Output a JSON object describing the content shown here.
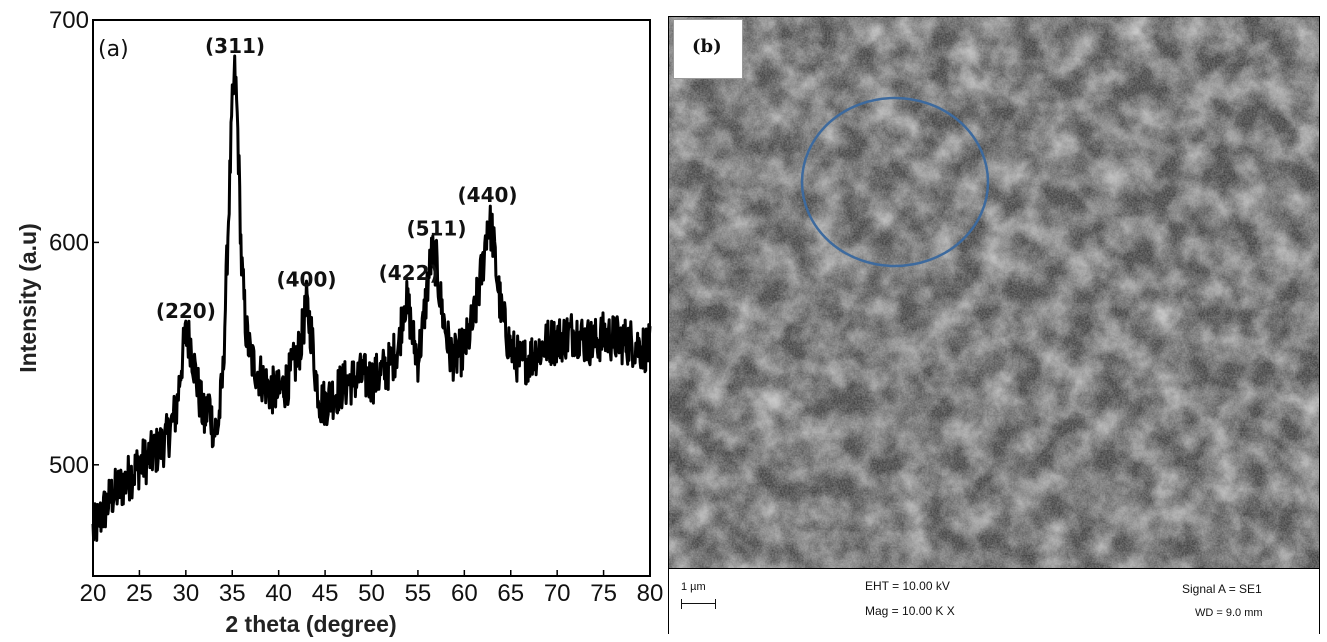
{
  "chart_data": {
    "type": "line",
    "panel_label": "(a)",
    "xlabel": "2 theta (degree)",
    "ylabel": "Intensity (a.u)",
    "xlim": [
      20,
      80
    ],
    "ylim": [
      450,
      700
    ],
    "x_ticks": [
      20,
      25,
      30,
      35,
      40,
      45,
      50,
      55,
      60,
      65,
      70,
      75,
      80
    ],
    "y_ticks": [
      500,
      600,
      700
    ],
    "grid": false,
    "legend": "none",
    "line_color": "#000000",
    "series": [
      {
        "x": [
          20,
          21,
          22,
          23,
          24,
          25,
          26,
          27,
          28,
          29,
          29.5,
          30,
          30.5,
          31,
          31.5,
          32,
          32.5,
          33,
          33.5,
          34,
          34.5,
          35,
          35.3,
          35.6,
          36,
          36.5,
          37,
          38,
          39,
          40,
          41,
          42,
          42.5,
          43,
          43.5,
          44,
          44.5,
          45,
          46,
          47,
          48,
          49,
          50,
          51,
          52,
          53,
          53.5,
          54,
          54.5,
          55,
          55.5,
          56,
          56.5,
          57,
          57.5,
          58,
          58.5,
          59,
          60,
          61,
          62,
          62.5,
          63,
          63.5,
          64,
          64.5,
          65,
          66,
          67,
          68,
          69,
          70,
          71,
          72,
          73,
          74,
          75,
          76,
          77,
          78,
          79,
          80
        ],
        "y": [
          470,
          478,
          486,
          490,
          495,
          500,
          503,
          507,
          512,
          525,
          545,
          558,
          555,
          542,
          530,
          520,
          528,
          515,
          518,
          540,
          600,
          660,
          677,
          650,
          590,
          560,
          548,
          540,
          534,
          532,
          538,
          548,
          558,
          572,
          560,
          540,
          528,
          528,
          532,
          536,
          538,
          540,
          538,
          541,
          545,
          555,
          575,
          570,
          556,
          548,
          560,
          580,
          595,
          590,
          572,
          560,
          550,
          548,
          552,
          565,
          590,
          610,
          605,
          585,
          568,
          560,
          552,
          546,
          548,
          552,
          555,
          556,
          558,
          560,
          556,
          555,
          558,
          557,
          556,
          555,
          553,
          552
        ]
      }
    ],
    "annotations": [
      {
        "text": "(220)",
        "x": 30.0,
        "y": 558
      },
      {
        "text": "(311)",
        "x": 35.3,
        "y": 677
      },
      {
        "text": "(400)",
        "x": 43.0,
        "y": 572
      },
      {
        "text": "(422)",
        "x": 54.0,
        "y": 575
      },
      {
        "text": "(511)",
        "x": 57.0,
        "y": 595
      },
      {
        "text": "(440)",
        "x": 62.5,
        "y": 610
      }
    ]
  },
  "sem": {
    "panel_label": "(b)",
    "highlight_color": "#3d6a9e",
    "background_color": "#3a3a3a",
    "scale_label": "1 µm",
    "eht": "EHT = 10.00 kV",
    "mag": "Mag = 10.00 K X",
    "signal": "Signal A = SE1",
    "wd": "WD = 9.0 mm"
  }
}
